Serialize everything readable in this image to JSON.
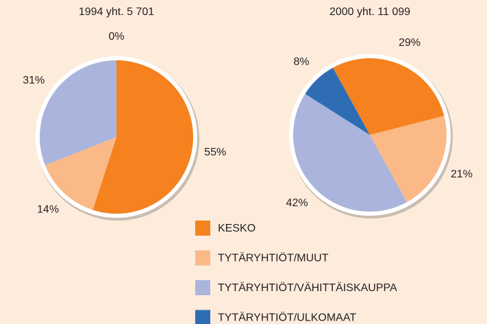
{
  "chart_data": [
    {
      "type": "pie",
      "title": "1994 yht. 5 701",
      "categories": [
        "KESKO",
        "TYTÄRYHTIÖT/MUUT",
        "TYTÄRYHTIÖT/VÄHITTÄISKAUPPA",
        "TYTÄRYHTIÖT/ULKOMAAT"
      ],
      "values": [
        55,
        14,
        31,
        0
      ],
      "value_labels": [
        "55%",
        "14%",
        "31%",
        "0%"
      ],
      "colors": [
        "#f5821f",
        "#fbb987",
        "#aab4dc",
        "#2e6db4"
      ]
    },
    {
      "type": "pie",
      "title": "2000 yht. 11 099",
      "categories": [
        "KESKO",
        "TYTÄRYHTIÖT/MUUT",
        "TYTÄRYHTIÖT/VÄHITTÄISKAUPPA",
        "TYTÄRYHTIÖT/ULKOMAAT"
      ],
      "values": [
        29,
        21,
        42,
        8
      ],
      "value_labels": [
        "29%",
        "21%",
        "42%",
        "8%"
      ],
      "colors": [
        "#f5821f",
        "#fbb987",
        "#aab4dc",
        "#2e6db4"
      ]
    }
  ]
}
